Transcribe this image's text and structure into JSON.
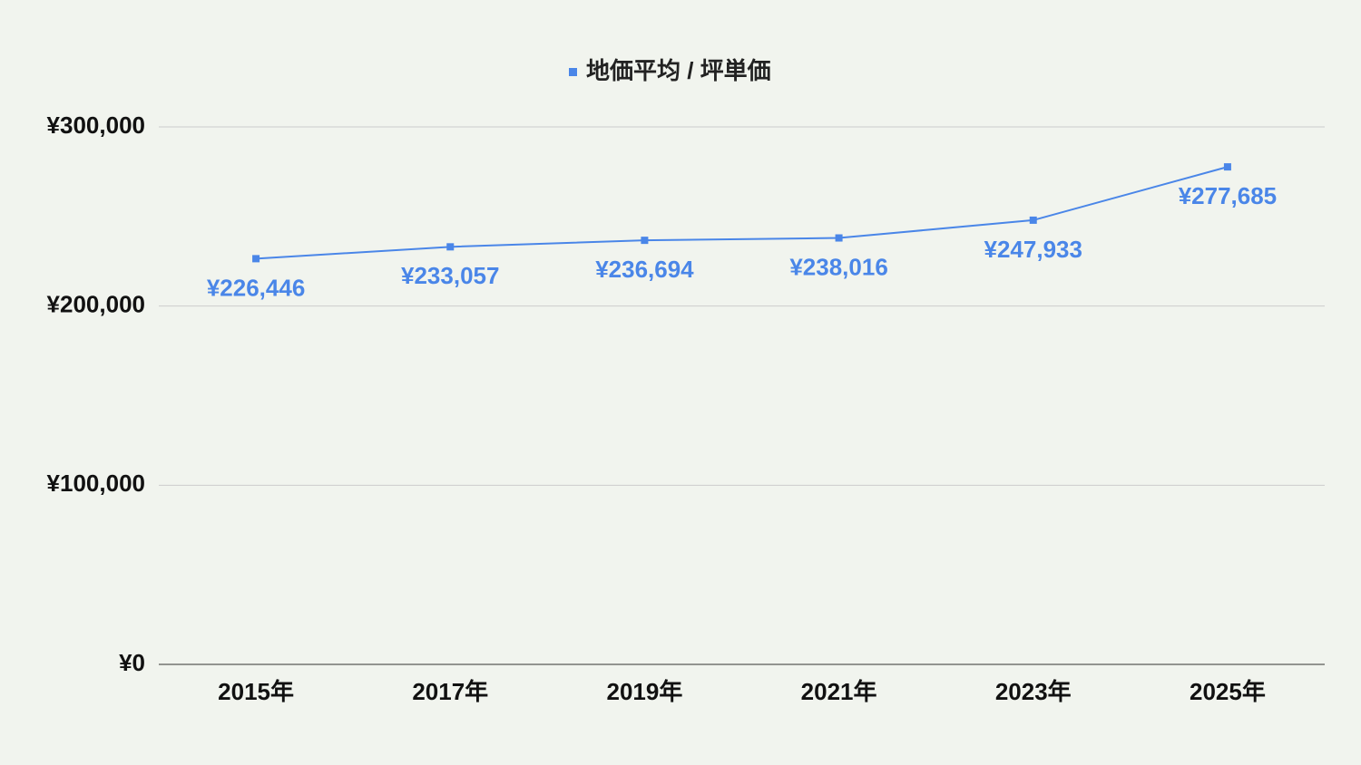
{
  "chart_data": {
    "type": "line",
    "categories": [
      "2015年",
      "2017年",
      "2019年",
      "2021年",
      "2023年",
      "2025年"
    ],
    "series": [
      {
        "name": "地価平均 / 坪単価",
        "color": "#4a86e8",
        "values": [
          226446,
          233057,
          236694,
          238016,
          247933,
          277685
        ],
        "value_labels": [
          "¥226,446",
          "¥233,057",
          "¥236,694",
          "¥238,016",
          "¥247,933",
          "¥277,685"
        ]
      }
    ],
    "ylim": [
      0,
      300000
    ],
    "yticks": [
      {
        "value": 0,
        "label": "¥0"
      },
      {
        "value": 100000,
        "label": "¥100,000"
      },
      {
        "value": 200000,
        "label": "¥200,000"
      },
      {
        "value": 300000,
        "label": "¥300,000"
      }
    ],
    "grid": true,
    "legend": "top"
  }
}
